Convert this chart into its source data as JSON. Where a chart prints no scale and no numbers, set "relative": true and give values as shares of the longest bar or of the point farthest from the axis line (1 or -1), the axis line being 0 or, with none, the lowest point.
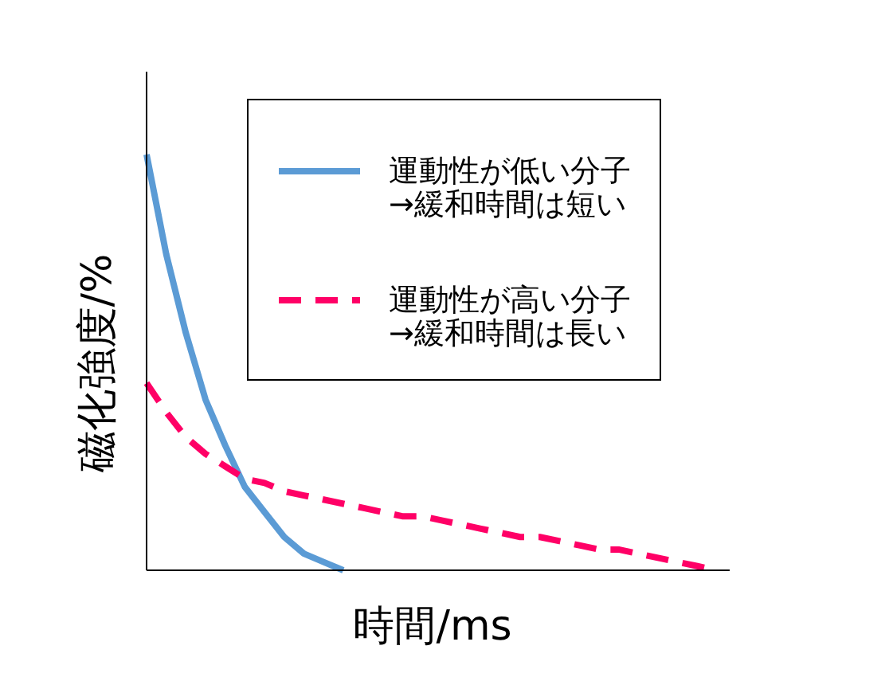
{
  "chart_data": {
    "type": "line",
    "relative": true,
    "xlabel": "時間/ms",
    "ylabel": "磁化強度/%",
    "legend": "top right",
    "grid": false,
    "tick_labels": false,
    "categories": [
      null,
      null,
      null,
      null,
      null,
      null,
      null,
      null,
      null,
      null,
      null,
      null,
      null,
      null,
      null,
      null,
      null,
      null,
      null,
      null,
      null,
      null,
      null,
      null,
      null,
      null,
      null,
      null,
      null,
      null
    ],
    "series": [
      {
        "name": "運動性が低い分子\n→緩和時間は短い",
        "color": "#5b9bd5",
        "line_style": "solid",
        "values": [
          1,
          0.76,
          0.57,
          0.41,
          0.3,
          0.2,
          0.14,
          0.08,
          0.04,
          0.02,
          0,
          null,
          null,
          null,
          null,
          null,
          null,
          null,
          null,
          null,
          null,
          null,
          null,
          null,
          null,
          null,
          null,
          null,
          null,
          null
        ]
      },
      {
        "name": "運動性が高い分子\n→緩和時間は長い",
        "color": "#ff0066",
        "line_style": "dashed",
        "values": [
          0.45,
          0.38,
          0.32,
          0.28,
          0.25,
          0.22,
          0.21,
          0.19,
          0.18,
          0.17,
          0.16,
          0.15,
          0.14,
          0.13,
          0.13,
          0.12,
          0.11,
          0.1,
          0.09,
          0.08,
          0.08,
          0.07,
          0.06,
          0.05,
          0.05,
          0.04,
          0.03,
          0.02,
          0.01,
          0
        ]
      }
    ]
  }
}
